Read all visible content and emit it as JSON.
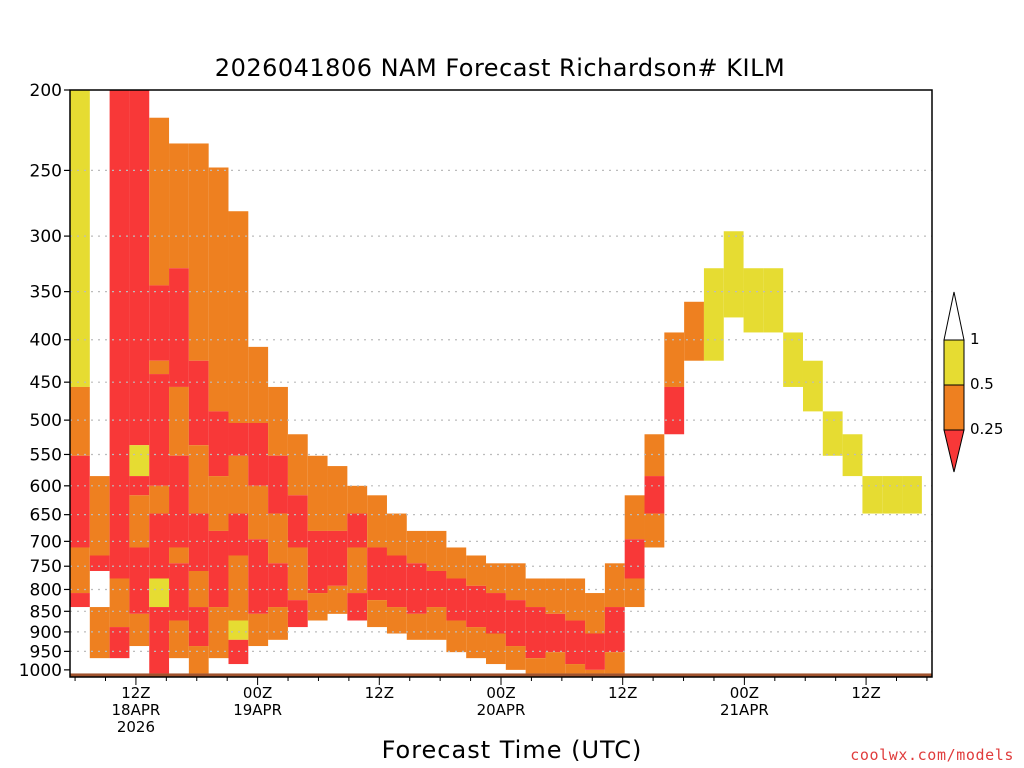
{
  "chart_data": {
    "type": "heatmap",
    "title": "2026041806 NAM Forecast Richardson# KILM",
    "xlabel": "Forecast Time (UTC)",
    "ylabel": "",
    "credit": "coolwx.com/models",
    "x_unit": "forecast hour",
    "xlim": [
      -0.5,
      84.5
    ],
    "yaxis": "pressure (hPa), inverted",
    "ylim": [
      1020,
      200
    ],
    "y_ticks": [
      "200",
      "250",
      "300",
      "350",
      "400",
      "450",
      "500",
      "550",
      "600",
      "650",
      "700",
      "750",
      "800",
      "850",
      "900",
      "950",
      "1000"
    ],
    "x_ticks": [
      {
        "hour": 6,
        "lines": [
          "12Z",
          "18APR",
          "2026"
        ]
      },
      {
        "hour": 18,
        "lines": [
          "00Z",
          "19APR"
        ]
      },
      {
        "hour": 30,
        "lines": [
          "12Z"
        ]
      },
      {
        "hour": 42,
        "lines": [
          "00Z",
          "20APR"
        ]
      },
      {
        "hour": 54,
        "lines": [
          "12Z"
        ]
      },
      {
        "hour": 66,
        "lines": [
          "00Z",
          "21APR"
        ]
      },
      {
        "hour": 78,
        "lines": [
          "12Z"
        ]
      }
    ],
    "legend": {
      "placement": "right",
      "labels": [
        "1",
        "0.5",
        "0.25"
      ],
      "bins": [
        {
          "name": "Ri 0.5–1",
          "color": "#e6dc32"
        },
        {
          "name": "Ri 0.25–0.5",
          "color": "#ee8020"
        },
        {
          "name": "Ri < 0.25",
          "color": "#f83838"
        }
      ],
      "ground_color": "#a0522d"
    },
    "bands": [
      [
        [
          0,
          0,
          80
        ],
        [
          1,
          80,
          110
        ],
        [
          2,
          110,
          160
        ],
        [
          1,
          160,
          190
        ],
        [
          2,
          190,
          200
        ]
      ],
      [
        [
          1,
          120,
          165
        ],
        [
          2,
          165,
          175
        ],
        [
          1,
          200,
          240
        ]
      ],
      [
        [
          2,
          0,
          180
        ],
        [
          1,
          180,
          215
        ],
        [
          2,
          215,
          240
        ]
      ],
      [
        [
          2,
          0,
          105
        ],
        [
          0,
          105,
          120
        ],
        [
          2,
          120,
          130
        ],
        [
          1,
          130,
          160
        ],
        [
          2,
          160,
          205
        ],
        [
          1,
          205,
          230
        ]
      ],
      [
        [
          1,
          5,
          45
        ],
        [
          2,
          45,
          70
        ],
        [
          1,
          70,
          75
        ],
        [
          2,
          75,
          125
        ],
        [
          1,
          125,
          140
        ],
        [
          2,
          140,
          180
        ],
        [
          0,
          180,
          200
        ],
        [
          2,
          200,
          260
        ]
      ],
      [
        [
          1,
          10,
          40
        ],
        [
          2,
          40,
          80
        ],
        [
          1,
          80,
          110
        ],
        [
          2,
          110,
          160
        ],
        [
          1,
          160,
          170
        ],
        [
          2,
          170,
          210
        ],
        [
          1,
          210,
          240
        ]
      ],
      [
        [
          1,
          10,
          70
        ],
        [
          2,
          70,
          105
        ],
        [
          1,
          105,
          140
        ],
        [
          2,
          140,
          175
        ],
        [
          1,
          175,
          200
        ],
        [
          2,
          200,
          230
        ],
        [
          1,
          230,
          255
        ]
      ],
      [
        [
          1,
          15,
          90
        ],
        [
          2,
          90,
          120
        ],
        [
          1,
          120,
          150
        ],
        [
          2,
          150,
          200
        ],
        [
          1,
          200,
          240
        ]
      ],
      [
        [
          1,
          25,
          95
        ],
        [
          2,
          95,
          110
        ],
        [
          1,
          110,
          140
        ],
        [
          2,
          140,
          165
        ],
        [
          1,
          165,
          210
        ],
        [
          0,
          210,
          225
        ],
        [
          2,
          225,
          245
        ]
      ],
      [
        [
          1,
          65,
          95
        ],
        [
          2,
          95,
          125
        ],
        [
          1,
          125,
          155
        ],
        [
          2,
          155,
          205
        ],
        [
          1,
          205,
          230
        ]
      ],
      [
        [
          1,
          80,
          110
        ],
        [
          2,
          110,
          140
        ],
        [
          1,
          140,
          170
        ],
        [
          2,
          170,
          200
        ],
        [
          1,
          200,
          225
        ]
      ],
      [
        [
          1,
          100,
          130
        ],
        [
          2,
          130,
          160
        ],
        [
          1,
          160,
          195
        ],
        [
          2,
          195,
          215
        ]
      ],
      [
        [
          1,
          110,
          150
        ],
        [
          2,
          150,
          190
        ],
        [
          1,
          190,
          210
        ]
      ],
      [
        [
          1,
          115,
          150
        ],
        [
          2,
          150,
          185
        ],
        [
          1,
          185,
          205
        ]
      ],
      [
        [
          1,
          125,
          140
        ],
        [
          2,
          140,
          160
        ],
        [
          1,
          160,
          190
        ],
        [
          2,
          190,
          210
        ]
      ],
      [
        [
          1,
          130,
          160
        ],
        [
          2,
          160,
          195
        ],
        [
          1,
          195,
          215
        ]
      ],
      [
        [
          1,
          140,
          165
        ],
        [
          2,
          165,
          200
        ],
        [
          1,
          200,
          220
        ]
      ],
      [
        [
          1,
          150,
          170
        ],
        [
          2,
          170,
          205
        ],
        [
          1,
          205,
          225
        ]
      ],
      [
        [
          1,
          150,
          175
        ],
        [
          2,
          175,
          200
        ],
        [
          1,
          200,
          225
        ]
      ],
      [
        [
          1,
          160,
          180
        ],
        [
          2,
          180,
          210
        ],
        [
          1,
          210,
          235
        ]
      ],
      [
        [
          1,
          165,
          185
        ],
        [
          2,
          185,
          215
        ],
        [
          1,
          215,
          240
        ]
      ],
      [
        [
          1,
          170,
          190
        ],
        [
          2,
          190,
          220
        ],
        [
          1,
          220,
          245
        ]
      ],
      [
        [
          1,
          170,
          195
        ],
        [
          2,
          195,
          230
        ],
        [
          1,
          230,
          250
        ]
      ],
      [
        [
          1,
          180,
          200
        ],
        [
          2,
          200,
          240
        ],
        [
          1,
          240,
          260
        ]
      ],
      [
        [
          1,
          180,
          205
        ],
        [
          2,
          205,
          235
        ],
        [
          1,
          235,
          255
        ]
      ],
      [
        [
          1,
          180,
          210
        ],
        [
          2,
          210,
          245
        ],
        [
          1,
          245,
          265
        ]
      ],
      [
        [
          1,
          190,
          220
        ],
        [
          2,
          220,
          250
        ],
        [
          1,
          250,
          270
        ]
      ],
      [
        [
          1,
          170,
          200
        ],
        [
          2,
          200,
          235
        ],
        [
          1,
          235,
          260
        ]
      ],
      [
        [
          1,
          130,
          155
        ],
        [
          2,
          155,
          180
        ],
        [
          1,
          180,
          200
        ]
      ],
      [
        [
          1,
          100,
          120
        ],
        [
          2,
          120,
          140
        ],
        [
          1,
          140,
          160
        ]
      ],
      [
        [
          1,
          60,
          80
        ],
        [
          2,
          80,
          100
        ]
      ],
      [
        [
          1,
          50,
          70
        ]
      ],
      [
        [
          0,
          40,
          70
        ]
      ],
      [
        [
          0,
          30,
          55
        ]
      ],
      [
        [
          0,
          40,
          60
        ]
      ],
      [
        [
          0,
          40,
          60
        ]
      ],
      [
        [
          0,
          60,
          80
        ]
      ],
      [
        [
          0,
          70,
          90
        ]
      ],
      [
        [
          0,
          90,
          110
        ]
      ],
      [
        [
          0,
          100,
          120
        ]
      ],
      [
        [
          0,
          120,
          140
        ]
      ],
      [
        [
          0,
          120,
          140
        ]
      ],
      [
        [
          0,
          120,
          140
        ]
      ]
    ],
    "ground_hpa": 1010
  }
}
